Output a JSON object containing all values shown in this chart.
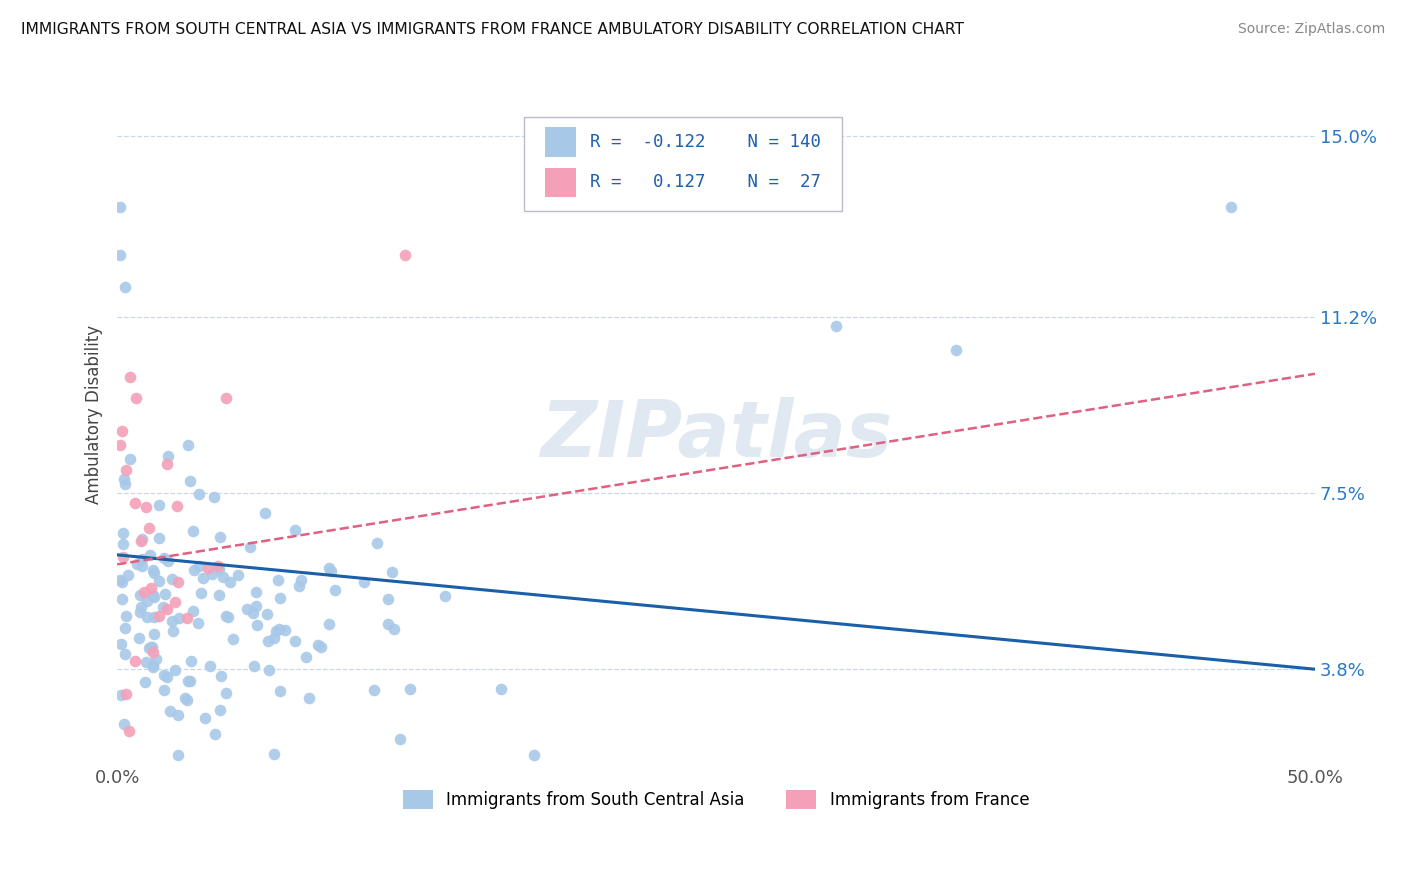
{
  "title": "IMMIGRANTS FROM SOUTH CENTRAL ASIA VS IMMIGRANTS FROM FRANCE AMBULATORY DISABILITY CORRELATION CHART",
  "source": "Source: ZipAtlas.com",
  "ylabel": "Ambulatory Disability",
  "xlim": [
    0.0,
    50.0
  ],
  "ylim": [
    1.8,
    16.5
  ],
  "yticks": [
    3.8,
    7.5,
    11.2,
    15.0
  ],
  "xtick_labels": [
    "0.0%",
    "50.0%"
  ],
  "ytick_labels": [
    "3.8%",
    "7.5%",
    "11.2%",
    "15.0%"
  ],
  "series1_color": "#a8c8e8",
  "series2_color": "#f4a0b8",
  "trendline1_color": "#1a5fa8",
  "trendline2_color": "#e06080",
  "R1": -0.122,
  "N1": 140,
  "R2": 0.127,
  "N2": 27,
  "watermark": "ZIPatlas",
  "background_color": "#ffffff",
  "grid_color": "#c8d8ec"
}
